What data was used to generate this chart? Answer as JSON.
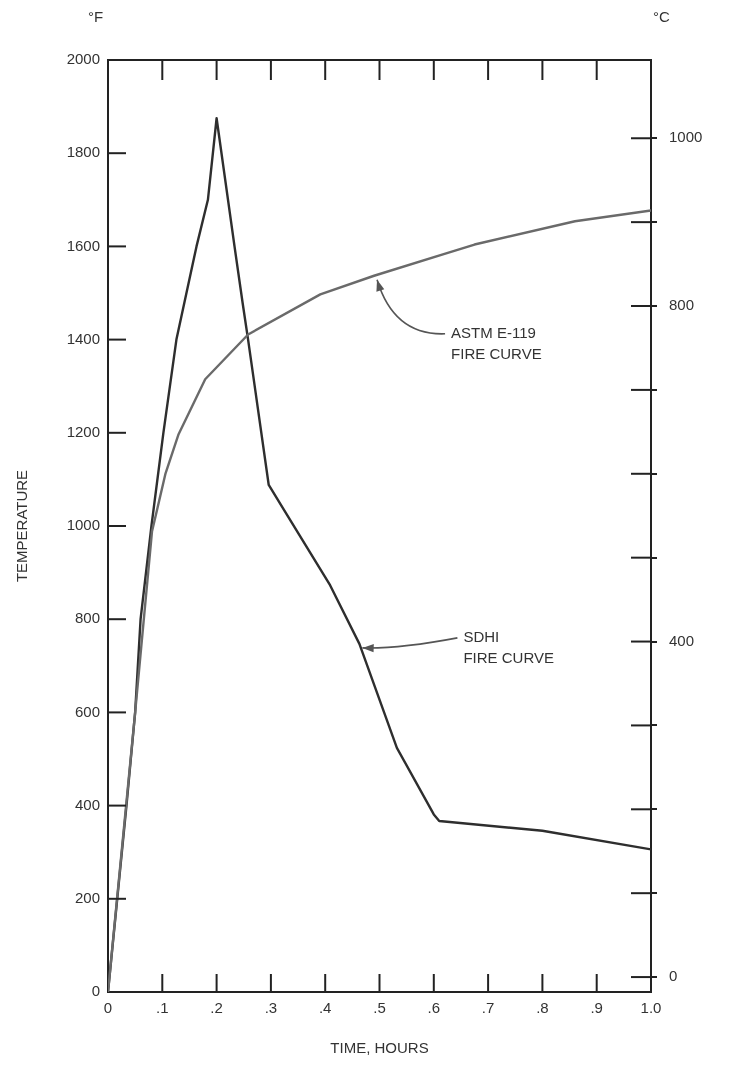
{
  "chart_data": {
    "type": "line",
    "xlabel": "TIME, HOURS",
    "ylabel": "TEMPERATURE",
    "y2label": "°C",
    "xlim": [
      0,
      1
    ],
    "xticks": [
      {
        "value": 0,
        "label": "0"
      },
      {
        "value": 0.1,
        "label": ".1"
      },
      {
        "value": 0.2,
        "label": ".2"
      },
      {
        "value": 0.3,
        "label": ".3"
      },
      {
        "value": 0.4,
        "label": ".4"
      },
      {
        "value": 0.5,
        "label": ".5"
      },
      {
        "value": 0.6,
        "label": ".6"
      },
      {
        "value": 0.7,
        "label": ".7"
      },
      {
        "value": 0.8,
        "label": ".8"
      },
      {
        "value": 0.9,
        "label": ".9"
      },
      {
        "value": 1,
        "label": "1.0"
      }
    ],
    "ylim": [
      0,
      2000
    ],
    "yticks": [
      0,
      200,
      400,
      600,
      800,
      1000,
      1200,
      1400,
      1600,
      1800,
      2000
    ],
    "y2lim": [
      -17.8,
      1093.3
    ],
    "y2ticks": [
      0,
      {
        "value": 100,
        "label": null
      },
      {
        "value": 200,
        "label": null
      },
      {
        "value": 300,
        "label": null
      },
      400,
      {
        "value": 500,
        "label": null
      },
      {
        "value": 600,
        "label": null
      },
      {
        "value": 700,
        "label": null
      },
      800,
      {
        "value": 900,
        "label": null
      },
      1000
    ],
    "grid": false,
    "legend": false,
    "marker": "none",
    "line_style": "solid",
    "series": [
      {
        "color": "#6a6a6a",
        "x": [
          0,
          0.05,
          0.081,
          0.106,
          0.13,
          0.179,
          0.258,
          0.391,
          0.49,
          0.675,
          0.86,
          1.0
        ],
        "values": [
          0,
          600,
          988,
          1113,
          1197,
          1315,
          1411,
          1497,
          1537,
          1604,
          1654,
          1677
        ]
      },
      {
        "color": "#2e2e2e",
        "x": [
          0,
          0.017,
          0.034,
          0.05,
          0.06,
          0.08,
          0.102,
          0.126,
          0.163,
          0.184,
          0.2,
          0.233,
          0.248,
          0.258,
          0.296,
          0.409,
          0.463,
          0.532,
          0.6,
          0.61,
          0.8,
          1.0
        ],
        "values": [
          0,
          200,
          400,
          600,
          800,
          1000,
          1200,
          1400,
          1600,
          1700,
          1875,
          1600,
          1478,
          1400,
          1088,
          873,
          747,
          524,
          381,
          367,
          346,
          306
        ]
      }
    ],
    "annotations": [
      "°F",
      {
        "text": "ASTM E-119 FIRE CURVE",
        "x": 0.49,
        "y": 1537
      },
      {
        "text": "SDHI FIRE CURVE",
        "x": 0.463,
        "y": 747
      }
    ]
  }
}
